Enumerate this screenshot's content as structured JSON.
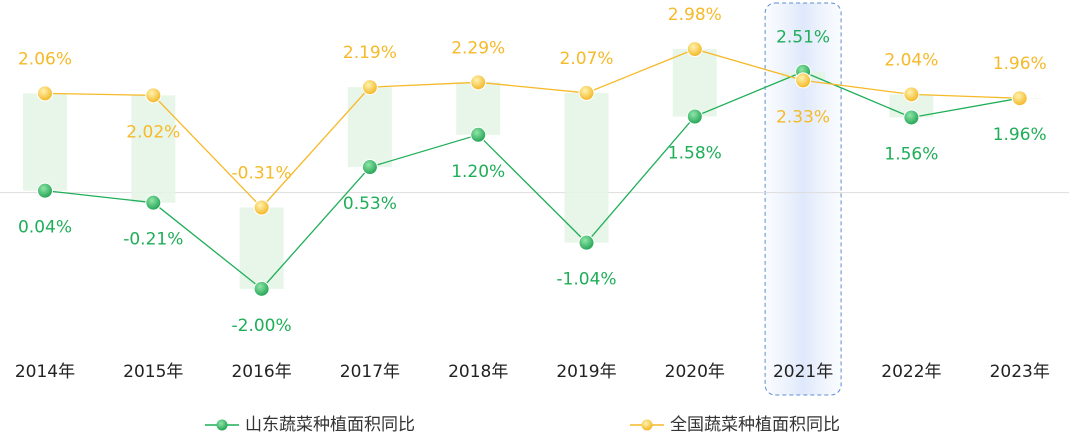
{
  "chart_data": {
    "type": "line",
    "categories": [
      "2014年",
      "2015年",
      "2016年",
      "2017年",
      "2018年",
      "2019年",
      "2020年",
      "2021年",
      "2022年",
      "2023年"
    ],
    "series": [
      {
        "name": "山东蔬菜种植面积同比",
        "color": "#1fae58",
        "values": [
          0.04,
          -0.21,
          -2.0,
          0.53,
          1.2,
          -1.04,
          1.58,
          2.51,
          1.56,
          1.96
        ],
        "value_labels": [
          "0.04%",
          "-0.21%",
          "-2.00%",
          "0.53%",
          "1.20%",
          "-1.04%",
          "1.58%",
          "2.51%",
          "1.56%",
          "1.96%"
        ]
      },
      {
        "name": "全国蔬菜种植面积同比",
        "color": "#f6b928",
        "values": [
          2.06,
          2.02,
          -0.31,
          2.19,
          2.29,
          2.07,
          2.98,
          2.33,
          2.04,
          1.96
        ],
        "value_labels": [
          "2.06%",
          "2.02%",
          "-0.31%",
          "2.19%",
          "2.29%",
          "2.07%",
          "2.98%",
          "2.33%",
          "2.04%",
          "1.96%"
        ]
      }
    ],
    "ylim": [
      -3,
      4
    ],
    "highlight_index": 7,
    "legend": "bottom"
  }
}
